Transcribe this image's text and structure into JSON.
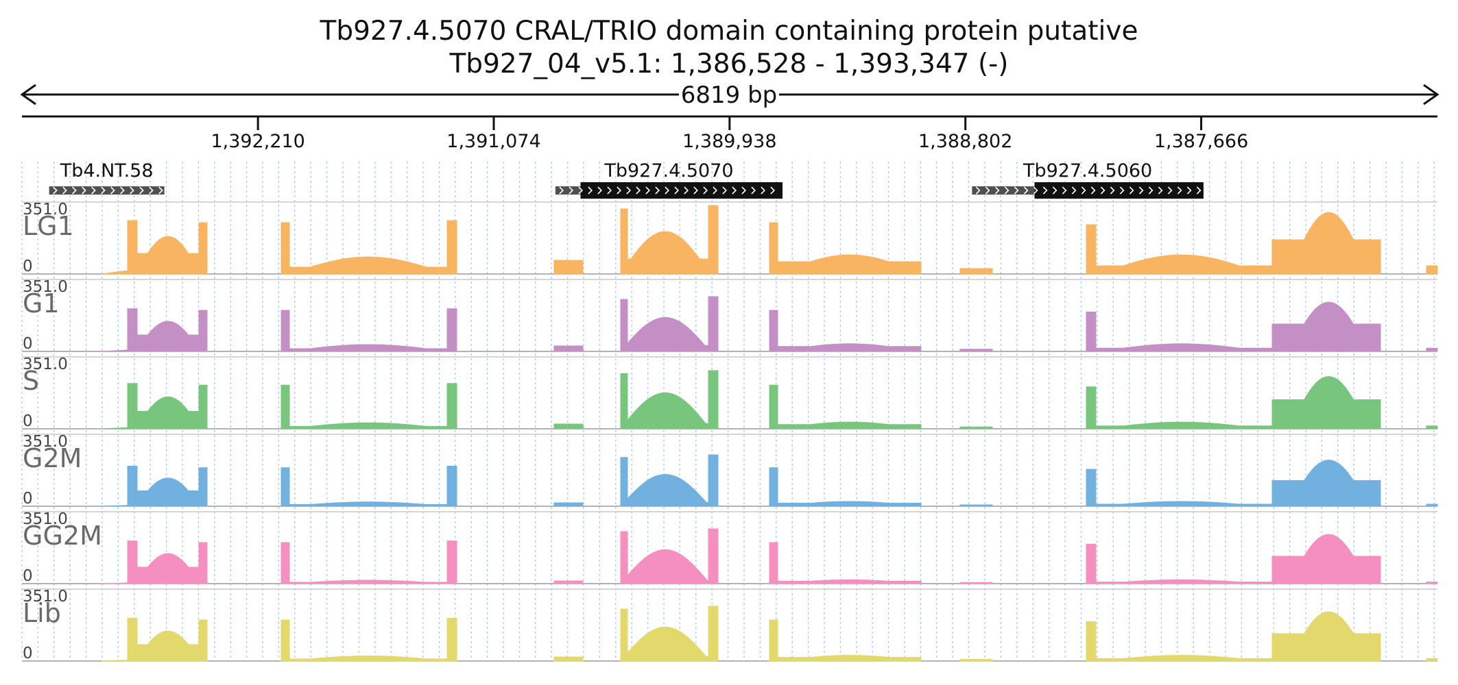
{
  "header": {
    "title": "Tb927.4.5070  CRAL/TRIO domain containing protein  putative",
    "location": "Tb927_04_v5.1: 1,386,528 - 1,393,347 (-)",
    "span_label": "6819 bp"
  },
  "chart_data": {
    "type": "area",
    "region": {
      "chromosome": "Tb927_04_v5.1",
      "start": 1386528,
      "end": 1393347,
      "strand": "-"
    },
    "x_ticks": [
      {
        "value": 1392210,
        "label": "1,392,210"
      },
      {
        "value": 1391074,
        "label": "1,391,074"
      },
      {
        "value": 1389938,
        "label": "1,389,938"
      },
      {
        "value": 1388802,
        "label": "1,388,802"
      },
      {
        "value": 1387666,
        "label": "1,387,666"
      }
    ],
    "genes": [
      {
        "name": "Tb4.NT.58",
        "start": 1392661,
        "end": 1393216,
        "cds_start": null,
        "cds_end": null
      },
      {
        "name": "Tb927.4.5070",
        "start": 1389683,
        "end": 1390777,
        "cds_start": 1389683,
        "cds_end": 1390656
      },
      {
        "name": "Tb927.4.5060",
        "start": 1387655,
        "end": 1388770,
        "cds_start": 1387655,
        "cds_end": 1388469
      }
    ],
    "ylim": [
      0,
      351.0
    ],
    "y_max_label": "351.0",
    "y_min_label": "0",
    "gridlines": "dotted vertical",
    "bin_size_bp": 44,
    "tracks": [
      {
        "name": "LG1",
        "color": "#f9b461",
        "values": [
          0,
          0,
          0,
          0,
          0,
          0,
          0,
          0,
          0,
          0,
          0,
          0,
          0,
          0,
          0,
          0,
          0,
          0,
          0,
          0,
          0,
          0,
          0,
          0,
          0,
          0,
          0,
          0,
          0,
          0,
          0,
          0,
          0,
          0,
          0,
          0,
          0,
          0,
          0,
          0,
          0,
          0,
          0,
          0,
          0,
          0,
          0,
          0,
          0,
          0,
          0,
          0,
          0,
          0,
          0,
          0,
          0,
          5,
          15,
          22,
          35,
          35,
          50,
          55,
          50,
          66,
          70,
          60,
          60,
          70,
          66,
          55,
          60,
          58,
          60,
          66,
          62,
          60,
          50,
          66,
          57,
          60,
          55,
          60,
          55,
          40,
          44,
          60,
          40,
          35,
          30,
          30,
          25,
          28,
          22,
          12,
          40,
          20,
          5,
          0,
          0,
          0,
          0,
          0,
          0,
          0,
          0,
          0,
          0,
          0,
          0,
          0,
          0,
          0,
          0,
          0,
          0,
          0,
          0,
          0,
          0,
          0,
          0,
          0,
          0,
          0,
          0,
          0,
          0,
          0,
          0,
          0,
          0,
          0,
          0,
          0,
          0,
          0,
          0,
          0,
          0,
          0,
          0,
          0,
          0,
          0,
          0,
          0,
          0,
          0,
          0,
          0,
          0,
          0,
          0,
          0,
          0
        ]
      },
      {
        "name": "G1",
        "color": "#c38fc4",
        "values": [
          0,
          0,
          0,
          0,
          0,
          0,
          0,
          0,
          0,
          0,
          0,
          0,
          0,
          0,
          0,
          0,
          0,
          0,
          0,
          0,
          0,
          0,
          0,
          0,
          0,
          0,
          0,
          0,
          0,
          0,
          0,
          0,
          0,
          0,
          0,
          0,
          0,
          0,
          0,
          0,
          0,
          0,
          0,
          0,
          0,
          0,
          0,
          0,
          0,
          0,
          0,
          0,
          0,
          0,
          0,
          0,
          0,
          0,
          0,
          0,
          0,
          0,
          0,
          0,
          0,
          0,
          0,
          0,
          0,
          0,
          0,
          0,
          0,
          0,
          0,
          0,
          0,
          0,
          0,
          0,
          0,
          0,
          0,
          0,
          0,
          0,
          0,
          0,
          0,
          0,
          0,
          0,
          0,
          0,
          0,
          0,
          0,
          0,
          0,
          0,
          0,
          0,
          0,
          0,
          0,
          0,
          0,
          0,
          0,
          0,
          0,
          0,
          0,
          0,
          0,
          0,
          0,
          0,
          0,
          0,
          0,
          0,
          0,
          0,
          0,
          0,
          0,
          0,
          0,
          0,
          0,
          0,
          0,
          0,
          0,
          0,
          0,
          0,
          0,
          0,
          0,
          0,
          0,
          0,
          0,
          0,
          0,
          0,
          0,
          0,
          0,
          0,
          0,
          0,
          0,
          0
        ]
      },
      {
        "name": "S",
        "color": "#78c67d",
        "values": [
          0,
          0,
          0,
          0,
          0,
          0,
          0,
          0,
          0,
          0,
          0,
          0,
          0,
          0,
          0,
          0,
          0,
          0,
          0,
          0,
          0,
          0,
          0,
          0,
          0,
          0,
          0,
          0,
          0,
          0,
          0,
          0,
          0,
          0,
          0,
          0,
          0,
          0,
          0,
          0,
          0,
          0,
          0,
          0,
          0,
          0,
          0,
          0,
          0,
          0,
          0,
          0,
          0,
          0,
          0,
          0,
          0,
          0,
          0,
          0,
          0,
          0,
          0,
          0,
          0,
          0,
          0,
          0,
          0,
          0,
          0,
          0,
          0,
          0,
          0,
          0,
          0,
          0,
          0,
          0,
          0,
          0,
          0,
          0,
          0,
          0,
          0,
          0,
          0,
          0,
          0,
          0,
          0,
          0,
          0,
          0,
          0,
          0,
          0,
          0,
          0,
          0,
          0,
          0,
          0,
          0,
          0,
          0,
          0,
          0,
          0,
          0,
          0,
          0,
          0,
          0,
          0,
          0,
          0,
          0,
          0,
          0,
          0,
          0,
          0,
          0,
          0,
          0,
          0,
          0,
          0,
          0,
          0,
          0,
          0,
          0,
          0,
          0,
          0,
          0,
          0,
          0,
          0,
          0,
          0,
          0,
          0,
          0,
          0,
          0,
          0,
          0,
          0,
          0,
          0,
          0
        ]
      },
      {
        "name": "G2M",
        "color": "#72b0e0",
        "values": [
          0,
          0,
          0,
          0,
          0,
          0,
          0,
          0,
          0,
          0,
          0,
          0,
          0,
          0,
          0,
          0,
          0,
          0,
          0,
          0,
          0,
          0,
          0,
          0,
          0,
          0,
          0,
          0,
          0,
          0,
          0,
          0,
          0,
          0,
          0,
          0,
          0,
          0,
          0,
          0,
          0,
          0,
          0,
          0,
          0,
          0,
          0,
          0,
          0,
          0,
          0,
          0,
          0,
          0,
          0,
          0,
          0,
          0,
          0,
          0,
          0,
          0,
          0,
          0,
          0,
          0,
          0,
          0,
          0,
          0,
          0,
          0,
          0,
          0,
          0,
          0,
          0,
          0,
          0,
          0,
          0,
          0,
          0,
          0,
          0,
          0,
          0,
          0,
          0,
          0,
          0,
          0,
          0,
          0,
          0,
          0,
          0,
          0,
          0,
          0,
          0,
          0,
          0,
          0,
          0,
          0,
          0,
          0,
          0,
          0,
          0,
          0,
          0,
          0,
          0,
          0,
          0,
          0,
          0,
          0,
          0,
          0,
          0,
          0,
          0,
          0,
          0,
          0,
          0,
          0,
          0,
          0,
          0,
          0,
          0,
          0,
          0,
          0,
          0,
          0,
          0,
          0,
          0,
          0,
          0,
          0,
          0,
          0,
          0,
          0,
          0,
          0,
          0,
          0,
          0,
          0
        ]
      },
      {
        "name": "GG2M",
        "color": "#f48fbf",
        "values": [
          0,
          0,
          0,
          0,
          0,
          0,
          0,
          0,
          0,
          0,
          0,
          0,
          0,
          0,
          0,
          0,
          0,
          0,
          0,
          0,
          0,
          0,
          0,
          0,
          0,
          0,
          0,
          0,
          0,
          0,
          0,
          0,
          0,
          0,
          0,
          0,
          0,
          0,
          0,
          0,
          0,
          0,
          0,
          0,
          0,
          0,
          0,
          0,
          0,
          0,
          0,
          0,
          0,
          0,
          0,
          0,
          0,
          0,
          0,
          0,
          0,
          0,
          0,
          0,
          0,
          0,
          0,
          0,
          0,
          0,
          0,
          0,
          0,
          0,
          0,
          0,
          0,
          0,
          0,
          0,
          0,
          0,
          0,
          0,
          0,
          0,
          0,
          0,
          0,
          0,
          0,
          0,
          0,
          0,
          0,
          0,
          0,
          0,
          0,
          0,
          0,
          0,
          0,
          0,
          0,
          0,
          0,
          0,
          0,
          0,
          0,
          0,
          0,
          0,
          0,
          0,
          0,
          0,
          0,
          0,
          0,
          0,
          0,
          0,
          0,
          0,
          0,
          0,
          0,
          0,
          0,
          0,
          0,
          0,
          0,
          0,
          0,
          0,
          0,
          0,
          0,
          0,
          0,
          0,
          0,
          0,
          0,
          0,
          0,
          0,
          0,
          0,
          0,
          0,
          0,
          0
        ]
      },
      {
        "name": "Lib",
        "color": "#e3d86c",
        "values": [
          0,
          0,
          0,
          0,
          0,
          0,
          0,
          0,
          0,
          0,
          0,
          0,
          0,
          0,
          0,
          0,
          0,
          0,
          0,
          0,
          0,
          0,
          0,
          0,
          0,
          0,
          0,
          0,
          0,
          0,
          0,
          0,
          0,
          0,
          0,
          0,
          0,
          0,
          0,
          0,
          0,
          0,
          0,
          0,
          0,
          0,
          0,
          0,
          0,
          0,
          0,
          0,
          0,
          0,
          0,
          0,
          0,
          0,
          0,
          0,
          0,
          0,
          0,
          0,
          0,
          0,
          0,
          0,
          0,
          0,
          0,
          0,
          0,
          0,
          0,
          0,
          0,
          0,
          0,
          0,
          0,
          0,
          0,
          0,
          0,
          0,
          0,
          0,
          0,
          0,
          0,
          0,
          0,
          0,
          0,
          0,
          0,
          0,
          0,
          0,
          0,
          0,
          0,
          0,
          0,
          0,
          0,
          0,
          0,
          0,
          0,
          0,
          0,
          0,
          0,
          0,
          0,
          0,
          0,
          0,
          0,
          0,
          0,
          0,
          0,
          0,
          0,
          0,
          0,
          0,
          0,
          0,
          0,
          0,
          0,
          0,
          0,
          0,
          0,
          0,
          0,
          0,
          0,
          0,
          0,
          0,
          0,
          0,
          0,
          0,
          0,
          0,
          0,
          0,
          0,
          0
        ]
      }
    ]
  }
}
